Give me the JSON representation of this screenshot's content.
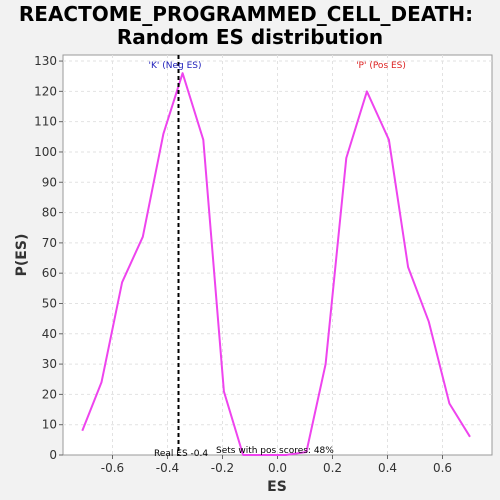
{
  "chart_data": {
    "type": "line",
    "title_line1": "REACTOME_PROGRAMMED_CELL_DEATH:",
    "title_line2": "Random ES distribution",
    "xlabel": "ES",
    "ylabel": "P(ES)",
    "xlim": [
      -0.78,
      0.78
    ],
    "ylim": [
      0,
      132
    ],
    "xticks": [
      -0.6,
      -0.4,
      -0.2,
      0.0,
      0.2,
      0.4,
      0.6
    ],
    "xtick_labels": [
      "-0.6",
      "-0.4",
      "-0.2",
      "0.0",
      "0.2",
      "0.4",
      "0.6"
    ],
    "yticks": [
      0,
      10,
      20,
      30,
      40,
      50,
      60,
      70,
      80,
      90,
      100,
      110,
      120,
      130
    ],
    "ytick_labels": [
      "0",
      "10",
      "20",
      "30",
      "40",
      "50",
      "60",
      "70",
      "80",
      "90",
      "100",
      "110",
      "120",
      "130"
    ],
    "grid": true,
    "series": [
      {
        "color": "#ee44ee",
        "x": [
          -0.71,
          -0.64,
          -0.565,
          -0.49,
          -0.415,
          -0.345,
          -0.27,
          -0.195,
          -0.125,
          -0.05,
          0.03,
          0.105,
          0.175,
          0.25,
          0.325,
          0.405,
          0.475,
          0.55,
          0.625,
          0.7
        ],
        "y": [
          8,
          24,
          57,
          72,
          106,
          126,
          104,
          21,
          0,
          0,
          0,
          1,
          30,
          98,
          120,
          104,
          62,
          44,
          17,
          6
        ]
      }
    ],
    "real_es": -0.36,
    "real_es_label": "Real ES -0.4",
    "annotations": {
      "neg": {
        "text": "'K' (Neg ES)",
        "color": "#2222bb"
      },
      "pos": {
        "text": "'P' (Pos ES)",
        "color": "#dd2222"
      },
      "pos_scores": "Sets with pos scores: 48%"
    }
  }
}
